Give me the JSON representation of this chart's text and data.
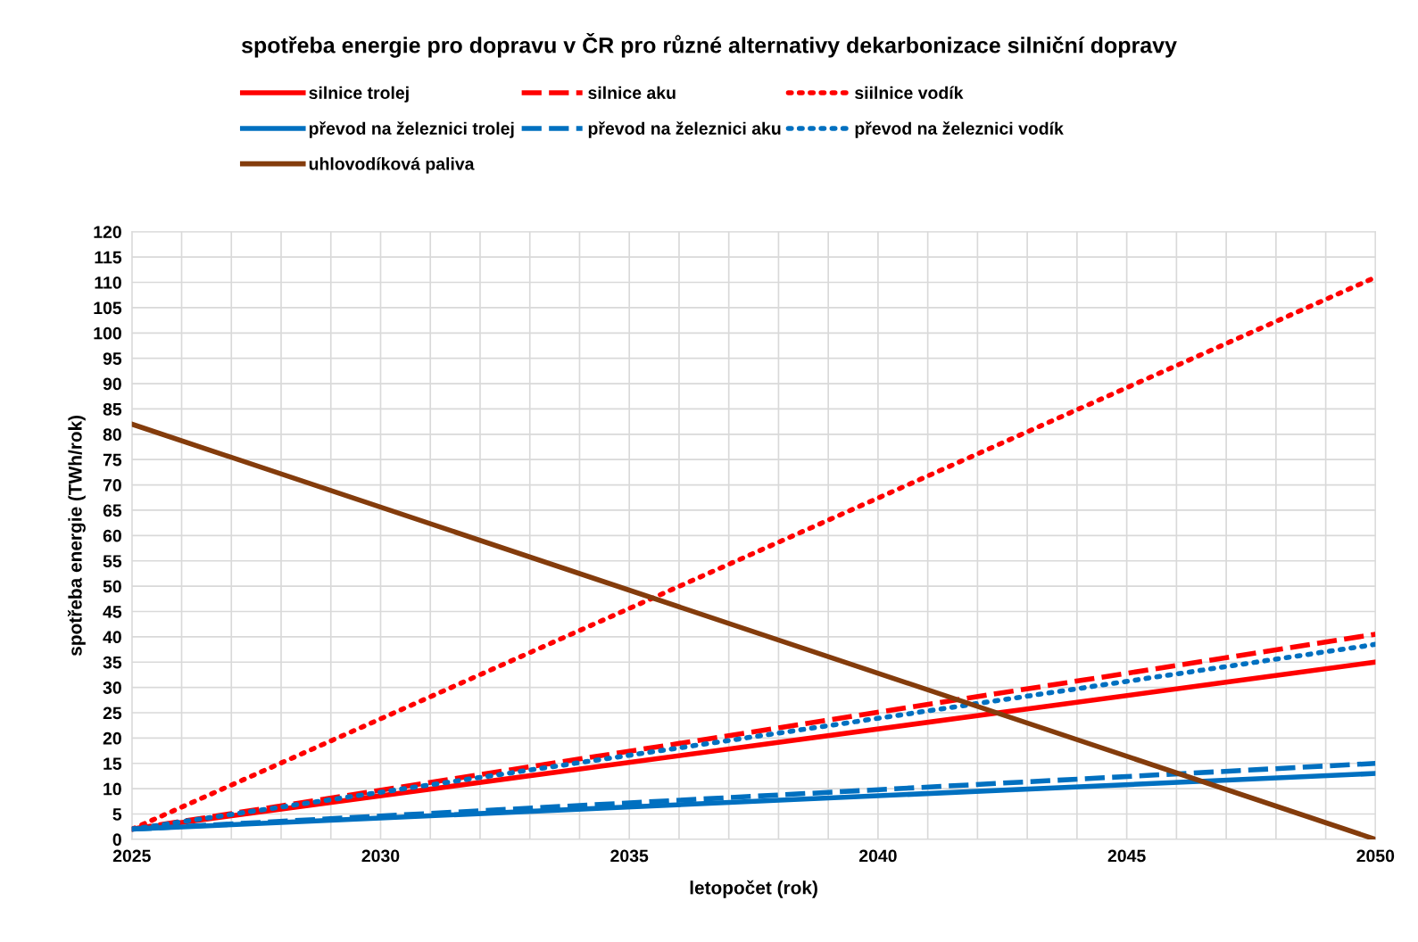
{
  "chart_data": {
    "type": "line",
    "title": "spotřeba energie pro dopravu v ČR pro různé alternativy dekarbonizace silniční dopravy",
    "xlabel": "letopočet (rok)",
    "ylabel": "spotřeba energie (TWh/rok)",
    "x": [
      2025,
      2050
    ],
    "series": [
      {
        "name": "silnice trolej",
        "color": "#ff0000",
        "line_style": "solid",
        "values": [
          2,
          35
        ]
      },
      {
        "name": "silnice aku",
        "color": "#ff0000",
        "line_style": "dashed",
        "values": [
          2,
          40.5
        ]
      },
      {
        "name": "siilnice vodík",
        "color": "#ff0000",
        "line_style": "dotted",
        "values": [
          2,
          111
        ]
      },
      {
        "name": "převod na železnici trolej",
        "color": "#0070c0",
        "line_style": "solid",
        "values": [
          2,
          13
        ]
      },
      {
        "name": "převod na železnici aku",
        "color": "#0070c0",
        "line_style": "dashed",
        "values": [
          2,
          15
        ]
      },
      {
        "name": "převod na železnici vodík",
        "color": "#0070c0",
        "line_style": "dotted",
        "values": [
          2,
          38.5
        ]
      },
      {
        "name": "uhlovodíková paliva",
        "color": "#843c0c",
        "line_style": "solid",
        "values": [
          82,
          0
        ]
      }
    ],
    "xlim": [
      2025,
      2050
    ],
    "xticks": [
      2025,
      {
        "value": 2026,
        "label": null
      },
      {
        "value": 2027,
        "label": null
      },
      {
        "value": 2028,
        "label": null
      },
      {
        "value": 2029,
        "label": null
      },
      2030,
      {
        "value": 2031,
        "label": null
      },
      {
        "value": 2032,
        "label": null
      },
      {
        "value": 2033,
        "label": null
      },
      {
        "value": 2034,
        "label": null
      },
      2035,
      {
        "value": 2036,
        "label": null
      },
      {
        "value": 2037,
        "label": null
      },
      {
        "value": 2038,
        "label": null
      },
      {
        "value": 2039,
        "label": null
      },
      2040,
      {
        "value": 2041,
        "label": null
      },
      {
        "value": 2042,
        "label": null
      },
      {
        "value": 2043,
        "label": null
      },
      {
        "value": 2044,
        "label": null
      },
      2045,
      {
        "value": 2046,
        "label": null
      },
      {
        "value": 2047,
        "label": null
      },
      {
        "value": 2048,
        "label": null
      },
      {
        "value": 2049,
        "label": null
      },
      2050
    ],
    "ylim": [
      0,
      120
    ],
    "yticks": [
      0,
      5,
      10,
      15,
      20,
      25,
      30,
      35,
      40,
      45,
      50,
      55,
      60,
      65,
      70,
      75,
      80,
      85,
      90,
      95,
      100,
      105,
      110,
      115,
      120
    ],
    "grid": true,
    "legend": "top",
    "marker": "none"
  }
}
